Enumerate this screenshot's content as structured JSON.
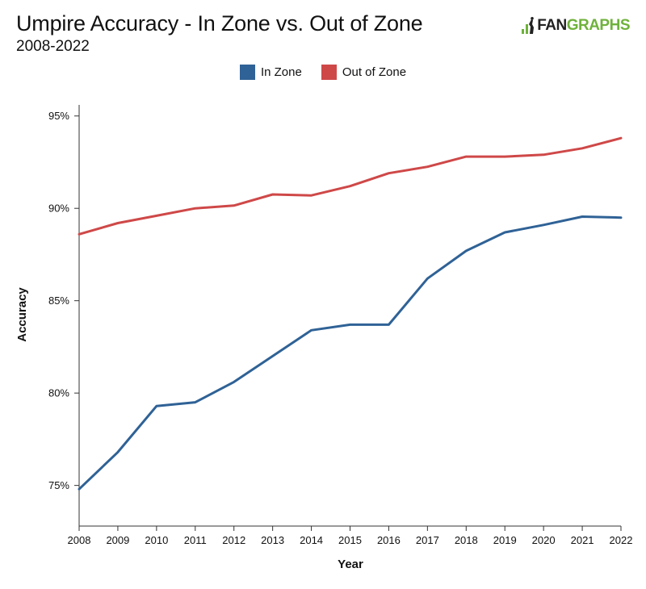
{
  "header": {
    "title": "Umpire Accuracy - In Zone vs. Out of Zone",
    "subtitle": "2008-2022",
    "logo_fan": "FAN",
    "logo_graphs": "GRAPHS"
  },
  "colors": {
    "in_zone": "#2f6296",
    "out_of_zone": "#cf4848",
    "brand_green": "#6fb23b"
  },
  "chart_data": {
    "type": "line",
    "title": "Umpire Accuracy - In Zone vs. Out of Zone",
    "subtitle": "2008-2022",
    "xlabel": "Year",
    "ylabel": "Accuracy",
    "x": [
      2008,
      2009,
      2010,
      2011,
      2012,
      2013,
      2014,
      2015,
      2016,
      2017,
      2018,
      2019,
      2020,
      2021,
      2022
    ],
    "x_tick_labels": [
      "2008",
      "2009",
      "2010",
      "2011",
      "2012",
      "2013",
      "2014",
      "2015",
      "2016",
      "2017",
      "2018",
      "2019",
      "2020",
      "2021",
      "2022"
    ],
    "y_ticks": [
      75,
      80,
      85,
      90,
      95
    ],
    "y_tick_labels": [
      "75%",
      "80%",
      "85%",
      "90%",
      "95%"
    ],
    "ylim": [
      72.8,
      95.6
    ],
    "grid": false,
    "legend_position": "top-center",
    "series": [
      {
        "name": "In Zone",
        "color": "#2f6296",
        "values": [
          74.8,
          76.8,
          79.3,
          79.5,
          80.6,
          82.0,
          83.4,
          83.7,
          83.7,
          86.2,
          87.7,
          88.7,
          89.1,
          89.55,
          89.5
        ]
      },
      {
        "name": "Out of Zone",
        "color": "#cf4848",
        "values": [
          88.6,
          89.2,
          89.6,
          90.0,
          90.15,
          90.75,
          90.7,
          91.2,
          91.9,
          92.25,
          92.8,
          92.8,
          92.9,
          93.25,
          93.8
        ]
      }
    ]
  }
}
